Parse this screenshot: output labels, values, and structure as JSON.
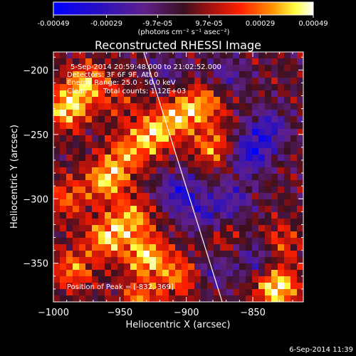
{
  "colorbar": {
    "tick_labels": [
      "-0.00049",
      "-0.00029",
      "-9.7e-05",
      "9.7e-05",
      "0.00029",
      "0.00049"
    ],
    "tick_values": [
      -0.00049,
      -0.00029,
      -9.7e-05,
      9.7e-05,
      0.00029,
      0.00049
    ],
    "range": [
      -0.00049,
      0.00049
    ],
    "unit_label": "(photons cm⁻² s⁻¹ asec⁻²)",
    "colors": [
      "#0000ff",
      "#4a0088",
      "#6a2a9a",
      "#7a1a1a",
      "#ff0000",
      "#ff7a00",
      "#ffff00",
      "#ffffff"
    ]
  },
  "chart_data": {
    "type": "heatmap",
    "title": "Reconstructed RHESSI Image",
    "xlabel": "Heliocentric X (arcsec)",
    "ylabel": "Heliocentric Y (arcsec)",
    "xlim": [
      -1000,
      -812
    ],
    "ylim": [
      -380,
      -186
    ],
    "x_ticks": [
      -1000,
      -950,
      -900,
      -850
    ],
    "y_ticks": [
      -200,
      -250,
      -300,
      -350
    ],
    "x_tick_labels": [
      "−1000",
      "−950",
      "−900",
      "−850"
    ],
    "y_tick_labels": [
      "−200",
      "−250",
      "−300",
      "−350"
    ],
    "limb_line": [
      [
        -932,
        -186
      ],
      [
        -873,
        -380
      ]
    ],
    "peak": [
      -832,
      -369
    ],
    "blobs": [
      {
        "x": -990,
        "y": -230,
        "v": 0.00042
      },
      {
        "x": -975,
        "y": -210,
        "v": 0.00035
      },
      {
        "x": -960,
        "y": -285,
        "v": 0.0004
      },
      {
        "x": -945,
        "y": -265,
        "v": 0.00028
      },
      {
        "x": -925,
        "y": -250,
        "v": 0.00038
      },
      {
        "x": -905,
        "y": -235,
        "v": 0.00035
      },
      {
        "x": -885,
        "y": -225,
        "v": 0.0003
      },
      {
        "x": -880,
        "y": -260,
        "v": 0.0003
      },
      {
        "x": -960,
        "y": -330,
        "v": 0.00038
      },
      {
        "x": -930,
        "y": -345,
        "v": 0.00042
      },
      {
        "x": -905,
        "y": -360,
        "v": 0.0003
      },
      {
        "x": -985,
        "y": -355,
        "v": 0.0003
      },
      {
        "x": -990,
        "y": -300,
        "v": 0.00025
      },
      {
        "x": -832,
        "y": -369,
        "v": 0.00049
      },
      {
        "x": -830,
        "y": -335,
        "v": 0.00025
      },
      {
        "x": -940,
        "y": -315,
        "v": 0.00033
      },
      {
        "x": -875,
        "y": -330,
        "v": 0.00018
      },
      {
        "x": -935,
        "y": -380,
        "v": 0.0003
      },
      {
        "x": -950,
        "y": -225,
        "v": 0.00015
      },
      {
        "x": -852,
        "y": -265,
        "v": -0.00035
      },
      {
        "x": -838,
        "y": -245,
        "v": -0.00028
      },
      {
        "x": -905,
        "y": -295,
        "v": -0.00033
      },
      {
        "x": -885,
        "y": -315,
        "v": -0.00025
      },
      {
        "x": -865,
        "y": -300,
        "v": -0.00022
      },
      {
        "x": -845,
        "y": -345,
        "v": -0.00025
      },
      {
        "x": -870,
        "y": -205,
        "v": -0.0002
      },
      {
        "x": -915,
        "y": -200,
        "v": -0.00015
      },
      {
        "x": -880,
        "y": -355,
        "v": -0.0002
      }
    ]
  },
  "annotations": {
    "time_range": "5-Sep-2014 20:59:48.000 to 21:02:52.000",
    "detectors": "Detectors: 3F 6F 9F, Att 0",
    "energy_range": "Energy Range: 25.0 - 50.0 keV",
    "clean": "Clean",
    "total_counts": "Total counts: 1.12E+03",
    "peak_label": "Position of Peak = [-832,-369]"
  },
  "footer": {
    "timestamp": "6-Sep-2014 11:39"
  }
}
